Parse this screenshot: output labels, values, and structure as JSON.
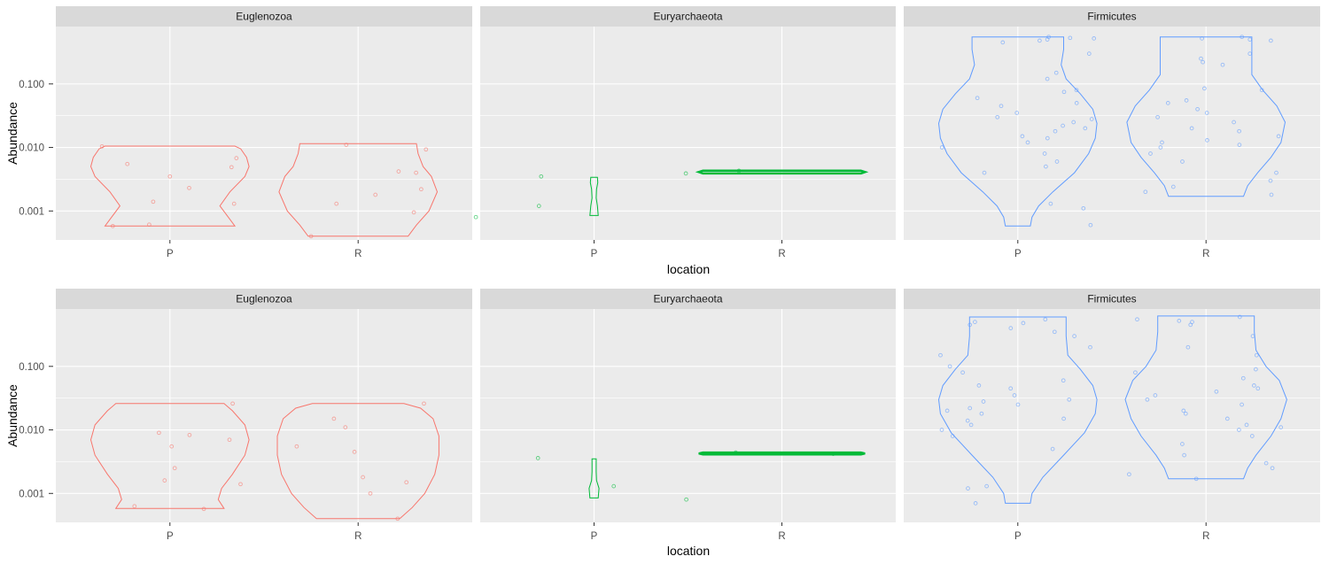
{
  "chart_data": {
    "type": "violin",
    "facets": [
      "Euglenozoa",
      "Euryarchaeota",
      "Firmicutes"
    ],
    "categories": [
      "P",
      "R"
    ],
    "xlabel": "location",
    "ylabel": "Abundance",
    "yscale": "log10",
    "yticks": [
      0.001,
      0.01,
      0.1
    ],
    "ytick_labels": [
      "0.001",
      "0.010",
      "0.100"
    ],
    "ylim": [
      0.00035,
      0.8
    ],
    "colors": {
      "Euglenozoa": "#F8766D",
      "Euryarchaeota": "#00BA38",
      "Firmicutes": "#619CFF"
    },
    "plots": [
      {
        "panels": [
          {
            "facet": "Euglenozoa",
            "violins": [
              {
                "category": "P",
                "min": 0.00058,
                "max": 0.0105,
                "width": [
                  [
                    0.00058,
                    0.78
                  ],
                  [
                    0.0008,
                    0.7
                  ],
                  [
                    0.0012,
                    0.6
                  ],
                  [
                    0.002,
                    0.72
                  ],
                  [
                    0.0035,
                    0.9
                  ],
                  [
                    0.005,
                    0.95
                  ],
                  [
                    0.007,
                    0.92
                  ],
                  [
                    0.0095,
                    0.85
                  ],
                  [
                    0.0105,
                    0.78
                  ]
                ]
              },
              {
                "category": "R",
                "min": 0.0004,
                "max": 0.0115,
                "width": [
                  [
                    0.0004,
                    0.6
                  ],
                  [
                    0.0006,
                    0.7
                  ],
                  [
                    0.001,
                    0.85
                  ],
                  [
                    0.002,
                    0.95
                  ],
                  [
                    0.0035,
                    0.88
                  ],
                  [
                    0.005,
                    0.78
                  ],
                  [
                    0.008,
                    0.72
                  ],
                  [
                    0.0115,
                    0.7
                  ]
                ]
              }
            ],
            "points": [
              {
                "category": "P",
                "values": [
                  0.0049,
                  0.0068,
                  0.0104,
                  0.0014,
                  0.0013,
                  0.00058,
                  0.00061,
                  0.0035,
                  0.0023,
                  0.0055
                ]
              },
              {
                "category": "R",
                "values": [
                  0.0093,
                  0.0042,
                  0.004,
                  0.0018,
                  0.00095,
                  0.0004,
                  0.0022,
                  0.0013,
                  0.011
                ]
              }
            ]
          },
          {
            "facet": "Euryarchaeota",
            "violins": [
              {
                "category": "P",
                "min": 0.00085,
                "max": 0.0034,
                "width": [
                  [
                    0.00085,
                    0.05
                  ],
                  [
                    0.0012,
                    0.04
                  ],
                  [
                    0.0016,
                    0.025
                  ],
                  [
                    0.0022,
                    0.03
                  ],
                  [
                    0.0028,
                    0.045
                  ],
                  [
                    0.0034,
                    0.04
                  ]
                ]
              },
              {
                "category": "R",
                "min": 0.0039,
                "max": 0.0043,
                "width": [
                  [
                    0.0039,
                    0.95
                  ],
                  [
                    0.0041,
                    1.0
                  ],
                  [
                    0.0043,
                    0.95
                  ]
                ]
              }
            ],
            "points": [
              {
                "category": "P",
                "values": [
                  0.0035,
                  0.0012,
                  0.0008
                ]
              },
              {
                "category": "R",
                "values": [
                  0.0043,
                  0.0039
                ]
              }
            ]
          },
          {
            "facet": "Firmicutes",
            "violins": [
              {
                "category": "P",
                "min": 0.00058,
                "max": 0.55,
                "width": [
                  [
                    0.00058,
                    0.15
                  ],
                  [
                    0.0008,
                    0.17
                  ],
                  [
                    0.0012,
                    0.25
                  ],
                  [
                    0.002,
                    0.42
                  ],
                  [
                    0.004,
                    0.68
                  ],
                  [
                    0.008,
                    0.85
                  ],
                  [
                    0.014,
                    0.93
                  ],
                  [
                    0.024,
                    0.95
                  ],
                  [
                    0.04,
                    0.9
                  ],
                  [
                    0.07,
                    0.75
                  ],
                  [
                    0.12,
                    0.58
                  ],
                  [
                    0.2,
                    0.52
                  ],
                  [
                    0.35,
                    0.55
                  ],
                  [
                    0.55,
                    0.55
                  ]
                ]
              },
              {
                "category": "R",
                "min": 0.0017,
                "max": 0.55,
                "width": [
                  [
                    0.0017,
                    0.45
                  ],
                  [
                    0.0025,
                    0.5
                  ],
                  [
                    0.004,
                    0.62
                  ],
                  [
                    0.007,
                    0.78
                  ],
                  [
                    0.012,
                    0.9
                  ],
                  [
                    0.025,
                    0.95
                  ],
                  [
                    0.045,
                    0.85
                  ],
                  [
                    0.08,
                    0.68
                  ],
                  [
                    0.14,
                    0.55
                  ],
                  [
                    0.25,
                    0.55
                  ],
                  [
                    0.55,
                    0.55
                  ]
                ]
              }
            ],
            "points": [
              {
                "category": "P",
                "values": [
                  0.5,
                  0.48,
                  0.52,
                  0.55,
                  0.53,
                  0.45,
                  0.3,
                  0.15,
                  0.12,
                  0.08,
                  0.075,
                  0.06,
                  0.05,
                  0.045,
                  0.035,
                  0.03,
                  0.028,
                  0.025,
                  0.022,
                  0.02,
                  0.018,
                  0.015,
                  0.014,
                  0.012,
                  0.01,
                  0.008,
                  0.006,
                  0.005,
                  0.004,
                  0.0013,
                  0.0011,
                  0.0006
                ]
              },
              {
                "category": "R",
                "values": [
                  0.55,
                  0.52,
                  0.5,
                  0.48,
                  0.3,
                  0.25,
                  0.22,
                  0.2,
                  0.085,
                  0.08,
                  0.055,
                  0.05,
                  0.04,
                  0.035,
                  0.03,
                  0.025,
                  0.02,
                  0.018,
                  0.015,
                  0.013,
                  0.012,
                  0.011,
                  0.01,
                  0.008,
                  0.006,
                  0.004,
                  0.003,
                  0.0024,
                  0.002,
                  0.0018
                ]
              }
            ]
          }
        ]
      },
      {
        "panels": [
          {
            "facet": "Euglenozoa",
            "violins": [
              {
                "category": "P",
                "min": 0.00058,
                "max": 0.026,
                "width": [
                  [
                    0.00058,
                    0.65
                  ],
                  [
                    0.0008,
                    0.58
                  ],
                  [
                    0.0012,
                    0.62
                  ],
                  [
                    0.002,
                    0.75
                  ],
                  [
                    0.004,
                    0.9
                  ],
                  [
                    0.007,
                    0.95
                  ],
                  [
                    0.012,
                    0.9
                  ],
                  [
                    0.02,
                    0.75
                  ],
                  [
                    0.026,
                    0.65
                  ]
                ]
              },
              {
                "category": "R",
                "min": 0.0004,
                "max": 0.026,
                "width": [
                  [
                    0.0004,
                    0.5
                  ],
                  [
                    0.0006,
                    0.65
                  ],
                  [
                    0.001,
                    0.8
                  ],
                  [
                    0.002,
                    0.92
                  ],
                  [
                    0.004,
                    0.97
                  ],
                  [
                    0.008,
                    0.97
                  ],
                  [
                    0.015,
                    0.9
                  ],
                  [
                    0.022,
                    0.75
                  ],
                  [
                    0.026,
                    0.55
                  ]
                ]
              }
            ],
            "points": [
              {
                "category": "P",
                "values": [
                  0.007,
                  0.0055,
                  0.0083,
                  0.026,
                  0.0025,
                  0.0016,
                  0.00063,
                  0.00057,
                  0.0014,
                  0.009
                ]
              },
              {
                "category": "R",
                "values": [
                  0.026,
                  0.015,
                  0.011,
                  0.0055,
                  0.0045,
                  0.0018,
                  0.0015,
                  0.001,
                  0.0004
                ]
              }
            ]
          },
          {
            "facet": "Euryarchaeota",
            "violins": [
              {
                "category": "P",
                "min": 0.00085,
                "max": 0.0035,
                "width": [
                  [
                    0.00085,
                    0.05
                  ],
                  [
                    0.0012,
                    0.06
                  ],
                  [
                    0.0016,
                    0.03
                  ],
                  [
                    0.0022,
                    0.025
                  ],
                  [
                    0.0035,
                    0.025
                  ]
                ]
              },
              {
                "category": "R",
                "min": 0.0041,
                "max": 0.0044,
                "width": [
                  [
                    0.0041,
                    0.95
                  ],
                  [
                    0.00425,
                    1.0
                  ],
                  [
                    0.0044,
                    0.95
                  ]
                ]
              }
            ],
            "points": [
              {
                "category": "P",
                "values": [
                  0.0036,
                  0.0008,
                  0.0013
                ]
              },
              {
                "category": "R",
                "values": [
                  0.0044,
                  0.0042
                ]
              }
            ]
          },
          {
            "facet": "Firmicutes",
            "violins": [
              {
                "category": "P",
                "min": 0.0007,
                "max": 0.6,
                "width": [
                  [
                    0.0007,
                    0.15
                  ],
                  [
                    0.001,
                    0.17
                  ],
                  [
                    0.0018,
                    0.3
                  ],
                  [
                    0.004,
                    0.55
                  ],
                  [
                    0.009,
                    0.8
                  ],
                  [
                    0.018,
                    0.93
                  ],
                  [
                    0.03,
                    0.95
                  ],
                  [
                    0.05,
                    0.9
                  ],
                  [
                    0.09,
                    0.75
                  ],
                  [
                    0.15,
                    0.6
                  ],
                  [
                    0.3,
                    0.58
                  ],
                  [
                    0.6,
                    0.58
                  ]
                ]
              },
              {
                "category": "R",
                "min": 0.0017,
                "max": 0.62,
                "width": [
                  [
                    0.0017,
                    0.45
                  ],
                  [
                    0.0025,
                    0.5
                  ],
                  [
                    0.004,
                    0.6
                  ],
                  [
                    0.008,
                    0.78
                  ],
                  [
                    0.015,
                    0.9
                  ],
                  [
                    0.03,
                    0.97
                  ],
                  [
                    0.06,
                    0.88
                  ],
                  [
                    0.1,
                    0.72
                  ],
                  [
                    0.18,
                    0.6
                  ],
                  [
                    0.35,
                    0.58
                  ],
                  [
                    0.62,
                    0.58
                  ]
                ]
              }
            ],
            "points": [
              {
                "category": "P",
                "values": [
                  0.55,
                  0.5,
                  0.48,
                  0.45,
                  0.4,
                  0.35,
                  0.3,
                  0.2,
                  0.15,
                  0.1,
                  0.08,
                  0.06,
                  0.05,
                  0.045,
                  0.035,
                  0.03,
                  0.028,
                  0.025,
                  0.022,
                  0.02,
                  0.018,
                  0.015,
                  0.014,
                  0.012,
                  0.01,
                  0.008,
                  0.005,
                  0.0013,
                  0.0012,
                  0.0007
                ]
              },
              {
                "category": "R",
                "values": [
                  0.6,
                  0.55,
                  0.52,
                  0.5,
                  0.45,
                  0.3,
                  0.2,
                  0.15,
                  0.09,
                  0.08,
                  0.065,
                  0.05,
                  0.045,
                  0.04,
                  0.035,
                  0.03,
                  0.025,
                  0.02,
                  0.018,
                  0.015,
                  0.012,
                  0.011,
                  0.01,
                  0.008,
                  0.006,
                  0.004,
                  0.003,
                  0.0025,
                  0.002,
                  0.0017
                ]
              }
            ]
          }
        ]
      }
    ]
  }
}
